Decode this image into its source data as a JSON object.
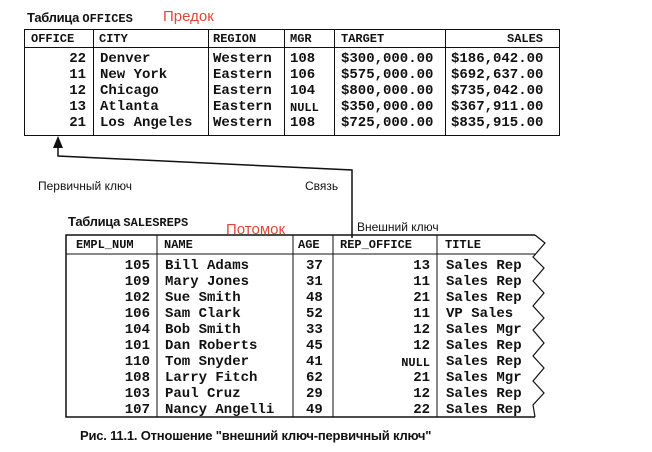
{
  "offices_label": {
    "prefix": "Таблица ",
    "name": "OFFICES"
  },
  "salesreps_label": {
    "prefix": "Таблица ",
    "name": "SALESREPS"
  },
  "parent_label": "Предок",
  "child_label": "Потомок",
  "primary_key_label": "Первичный ключ",
  "link_label": "Связь",
  "foreign_key_label": "Внешний ключ",
  "caption": "Рис. 11.1. Отношение \"внешний ключ-первичный ключ\"",
  "offices": {
    "columns": [
      "OFFICE",
      "CITY",
      "REGION",
      "MGR",
      "TARGET",
      "SALES"
    ],
    "rows": [
      [
        "22",
        "Denver",
        "Western",
        "108",
        "$300,000.00",
        "$186,042.00"
      ],
      [
        "11",
        "New York",
        "Eastern",
        "106",
        "$575,000.00",
        "$692,637.00"
      ],
      [
        "12",
        "Chicago",
        "Eastern",
        "104",
        "$800,000.00",
        "$735,042.00"
      ],
      [
        "13",
        "Atlanta",
        "Eastern",
        "NULL",
        "$350,000.00",
        "$367,911.00"
      ],
      [
        "21",
        "Los Angeles",
        "Western",
        "108",
        "$725,000.00",
        "$835,915.00"
      ]
    ]
  },
  "salesreps": {
    "columns": [
      "EMPL_NUM",
      "NAME",
      "AGE",
      "REP_OFFICE",
      "TITLE"
    ],
    "rows": [
      [
        "105",
        "Bill Adams",
        "37",
        "13",
        "Sales Rep"
      ],
      [
        "109",
        "Mary Jones",
        "31",
        "11",
        "Sales Rep"
      ],
      [
        "102",
        "Sue Smith",
        "48",
        "21",
        "Sales Rep"
      ],
      [
        "106",
        "Sam Clark",
        "52",
        "11",
        "VP Sales"
      ],
      [
        "104",
        "Bob Smith",
        "33",
        "12",
        "Sales Mgr"
      ],
      [
        "101",
        "Dan Roberts",
        "45",
        "12",
        "Sales Rep"
      ],
      [
        "110",
        "Tom Snyder",
        "41",
        "NULL",
        "Sales Rep"
      ],
      [
        "108",
        "Larry Fitch",
        "62",
        "21",
        "Sales Mgr"
      ],
      [
        "103",
        "Paul Cruz",
        "29",
        "12",
        "Sales Rep"
      ],
      [
        "107",
        "Nancy Angelli",
        "49",
        "22",
        "Sales Rep"
      ]
    ]
  }
}
